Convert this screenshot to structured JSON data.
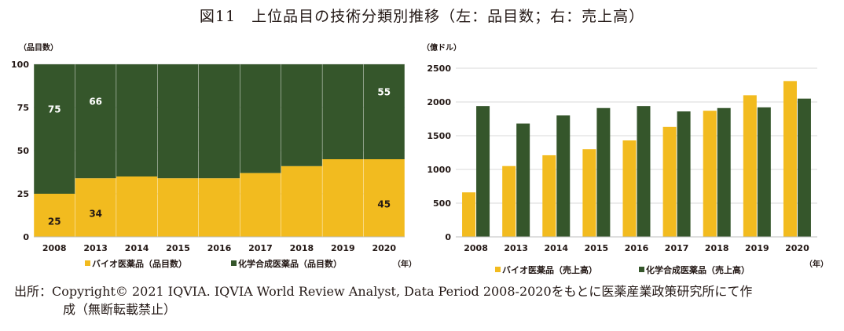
{
  "title": "図11　上位品目の技術分類別推移（左：品目数；右：売上高）",
  "colors": {
    "bio": "#f2bb1f",
    "chem": "#35562b",
    "grid": "#d9d9d9",
    "axis": "#bfbfbf"
  },
  "chart_data": [
    {
      "type": "bar",
      "stacked": true,
      "title": "",
      "unit_label": "（品目数）",
      "xlabel": "（年）",
      "categories": [
        "2008",
        "2013",
        "2014",
        "2015",
        "2016",
        "2017",
        "2018",
        "2019",
        "2020"
      ],
      "ylim": [
        0,
        100
      ],
      "yticks": [
        "0",
        "25",
        "50",
        "75",
        "100"
      ],
      "series": [
        {
          "name": "バイオ医薬品（品目数）",
          "key": "bio",
          "values": [
            25,
            34,
            35,
            34,
            34,
            37,
            41,
            45,
            45
          ]
        },
        {
          "name": "化学合成医薬品（品目数）",
          "key": "chem",
          "values": [
            75,
            66,
            65,
            66,
            66,
            63,
            59,
            55,
            55
          ]
        }
      ],
      "data_labels": [
        {
          "series": "bio",
          "index": 0,
          "text": "25"
        },
        {
          "series": "bio",
          "index": 1,
          "text": "34"
        },
        {
          "series": "bio",
          "index": 8,
          "text": "45"
        },
        {
          "series": "chem",
          "index": 0,
          "text": "75"
        },
        {
          "series": "chem",
          "index": 1,
          "text": "66"
        },
        {
          "series": "chem",
          "index": 8,
          "text": "55"
        }
      ],
      "legend_position": "bottom"
    },
    {
      "type": "bar",
      "stacked": false,
      "title": "",
      "unit_label": "（億ドル）",
      "xlabel": "（年）",
      "categories": [
        "2008",
        "2013",
        "2014",
        "2015",
        "2016",
        "2017",
        "2018",
        "2019",
        "2020"
      ],
      "ylim": [
        0,
        2500
      ],
      "yticks": [
        "0",
        "500",
        "1000",
        "1500",
        "2000",
        "2500"
      ],
      "series": [
        {
          "name": "バイオ医薬品（売上高）",
          "key": "bio",
          "values": [
            660,
            1050,
            1210,
            1300,
            1430,
            1630,
            1870,
            2100,
            2310
          ]
        },
        {
          "name": "化学合成医薬品（売上高）",
          "key": "chem",
          "values": [
            1940,
            1680,
            1800,
            1910,
            1940,
            1860,
            1910,
            1920,
            2050
          ]
        }
      ],
      "data_labels": [],
      "legend_position": "bottom"
    }
  ],
  "source_line1": "出所：Copyright© 2021 IQVIA. IQVIA World Review Analyst, Data Period 2008-2020をもとに医薬産業政策研究所にて作",
  "source_line2": "成（無断転載禁止）"
}
